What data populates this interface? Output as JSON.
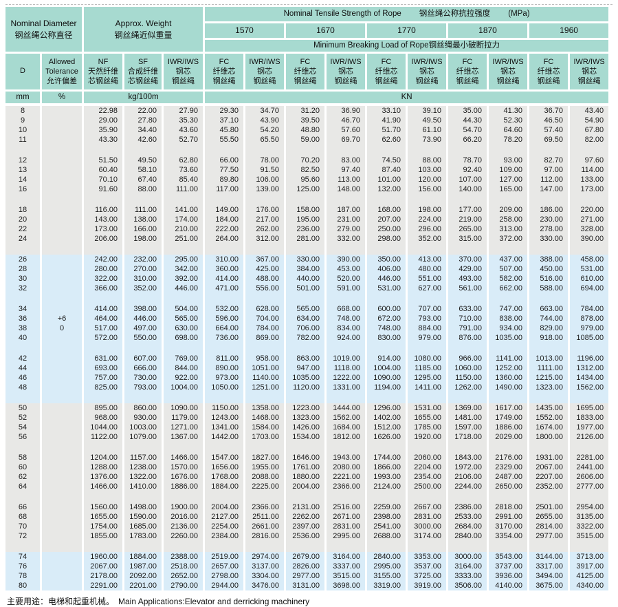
{
  "header": {
    "nominal_diameter_en": "Nominal Diameter",
    "nominal_diameter_zh": "钢丝绳公称直径",
    "approx_weight_en": "Approx. Weight",
    "approx_weight_zh": "钢丝绳近似重量",
    "tensile_title_en": "Nominal Tensile Strength of Rope",
    "tensile_title_zh": "钢丝绳公称抗拉强度",
    "tensile_title_unit": "(MPa)",
    "grades": [
      "1570",
      "1670",
      "1770",
      "1870",
      "1960"
    ],
    "breaking_load_en": "Minimum Breaking Load of Rope",
    "breaking_load_zh": "钢丝绳最小破断拉力",
    "col_d": "D",
    "tolerance_line1": "Allowed",
    "tolerance_line2": "Tolerance",
    "tolerance_zh": "允许偏差",
    "weight_columns": [
      {
        "id": "nf",
        "lines": [
          "NF",
          "天然纤维",
          "芯钢丝绳"
        ]
      },
      {
        "id": "sf",
        "lines": [
          "SF",
          "合成纤维",
          "芯钢丝绳"
        ]
      },
      {
        "id": "iwr",
        "lines": [
          "IWR/IWS",
          "钢芯",
          "钢丝绳"
        ]
      }
    ],
    "load_column_fc": {
      "id": "fc",
      "lines": [
        "FC",
        "纤维芯",
        "钢丝绳"
      ]
    },
    "load_column_iwr": {
      "id": "iwr-iws",
      "lines": [
        "IWR/IWS",
        "钢芯",
        "钢丝绳"
      ]
    },
    "unit_mm": "mm",
    "unit_pct": "%",
    "unit_kg": "kg/100m",
    "unit_kn": "KN"
  },
  "tolerance_display": {
    "upper": "+6",
    "lower": "0"
  },
  "colors": {
    "header_teal": "#a7dad0",
    "band_gray": "#e8e8e6",
    "band_blue": "#d9ecf8"
  },
  "groups": [
    {
      "band": "gray",
      "rows": [
        {
          "d": "8",
          "v": [
            "22.98",
            "22.00",
            "27.90",
            "29.30",
            "34.70",
            "31.20",
            "36.90",
            "33.10",
            "39.10",
            "35.00",
            "41.30",
            "36.70",
            "43.40"
          ]
        },
        {
          "d": "9",
          "v": [
            "29.00",
            "27.80",
            "35.30",
            "37.10",
            "43.90",
            "39.50",
            "46.70",
            "41.90",
            "49.50",
            "44.30",
            "52.30",
            "46.50",
            "54.90"
          ]
        },
        {
          "d": "10",
          "v": [
            "35.90",
            "34.40",
            "43.60",
            "45.80",
            "54.20",
            "48.80",
            "57.60",
            "51.70",
            "61.10",
            "54.70",
            "64.60",
            "57.40",
            "67.80"
          ]
        },
        {
          "d": "11",
          "v": [
            "43.30",
            "42.60",
            "52.70",
            "55.50",
            "65.50",
            "59.00",
            "69.70",
            "62.60",
            "73.90",
            "66.20",
            "78.20",
            "69.50",
            "82.00"
          ]
        }
      ]
    },
    {
      "band": "gray",
      "rows": [
        {
          "d": "12",
          "v": [
            "51.50",
            "49.50",
            "62.80",
            "66.00",
            "78.00",
            "70.20",
            "83.00",
            "74.50",
            "88.00",
            "78.70",
            "93.00",
            "82.70",
            "97.60"
          ]
        },
        {
          "d": "13",
          "v": [
            "60.40",
            "58.10",
            "73.60",
            "77.50",
            "91.50",
            "82.50",
            "97.40",
            "87.40",
            "103.00",
            "92.40",
            "109.00",
            "97.00",
            "114.00"
          ]
        },
        {
          "d": "14",
          "v": [
            "70.10",
            "67.40",
            "85.40",
            "89.80",
            "106.00",
            "95.60",
            "113.00",
            "101.00",
            "120.00",
            "107.00",
            "127.00",
            "112.00",
            "133.00"
          ]
        },
        {
          "d": "16",
          "v": [
            "91.60",
            "88.00",
            "111.00",
            "117.00",
            "139.00",
            "125.00",
            "148.00",
            "132.00",
            "156.00",
            "140.00",
            "165.00",
            "147.00",
            "173.00"
          ]
        }
      ]
    },
    {
      "band": "gray",
      "rows": [
        {
          "d": "18",
          "v": [
            "116.00",
            "111.00",
            "141.00",
            "149.00",
            "176.00",
            "158.00",
            "187.00",
            "168.00",
            "198.00",
            "177.00",
            "209.00",
            "186.00",
            "220.00"
          ]
        },
        {
          "d": "20",
          "v": [
            "143.00",
            "138.00",
            "174.00",
            "184.00",
            "217.00",
            "195.00",
            "231.00",
            "207.00",
            "224.00",
            "219.00",
            "258.00",
            "230.00",
            "271.00"
          ]
        },
        {
          "d": "22",
          "v": [
            "173.00",
            "166.00",
            "210.00",
            "222.00",
            "262.00",
            "236.00",
            "279.00",
            "250.00",
            "296.00",
            "265.00",
            "313.00",
            "278.00",
            "328.00"
          ]
        },
        {
          "d": "24",
          "v": [
            "206.00",
            "198.00",
            "251.00",
            "264.00",
            "312.00",
            "281.00",
            "332.00",
            "298.00",
            "352.00",
            "315.00",
            "372.00",
            "330.00",
            "390.00"
          ]
        }
      ]
    },
    {
      "band": "blue",
      "rows": [
        {
          "d": "26",
          "v": [
            "242.00",
            "232.00",
            "295.00",
            "310.00",
            "367.00",
            "330.00",
            "390.00",
            "350.00",
            "413.00",
            "370.00",
            "437.00",
            "388.00",
            "458.00"
          ]
        },
        {
          "d": "28",
          "v": [
            "280.00",
            "270.00",
            "342.00",
            "360.00",
            "425.00",
            "384.00",
            "453.00",
            "406.00",
            "480.00",
            "429.00",
            "507.00",
            "450.00",
            "531.00"
          ]
        },
        {
          "d": "30",
          "v": [
            "322.00",
            "310.00",
            "392.00",
            "414.00",
            "488.00",
            "440.00",
            "520.00",
            "446.00",
            "551.00",
            "493.00",
            "582.00",
            "516.00",
            "610.00"
          ]
        },
        {
          "d": "32",
          "v": [
            "366.00",
            "352.00",
            "446.00",
            "471.00",
            "556.00",
            "501.00",
            "591.00",
            "531.00",
            "627.00",
            "561.00",
            "662.00",
            "588.00",
            "694.00"
          ]
        }
      ]
    },
    {
      "band": "blue",
      "rows": [
        {
          "d": "34",
          "v": [
            "414.00",
            "398.00",
            "504.00",
            "532.00",
            "628.00",
            "565.00",
            "668.00",
            "600.00",
            "707.00",
            "633.00",
            "747.00",
            "663.00",
            "784.00"
          ]
        },
        {
          "d": "36",
          "tol": "+6",
          "v": [
            "464.00",
            "446.00",
            "565.00",
            "596.00",
            "704.00",
            "634.00",
            "748.00",
            "672.00",
            "793.00",
            "710.00",
            "838.00",
            "744.00",
            "878.00"
          ]
        },
        {
          "d": "38",
          "tol": "0",
          "v": [
            "517.00",
            "497.00",
            "630.00",
            "664.00",
            "784.00",
            "706.00",
            "834.00",
            "748.00",
            "884.00",
            "791.00",
            "934.00",
            "829.00",
            "979.00"
          ]
        },
        {
          "d": "40",
          "v": [
            "572.00",
            "550.00",
            "698.00",
            "736.00",
            "869.00",
            "782.00",
            "924.00",
            "830.00",
            "979.00",
            "876.00",
            "1035.00",
            "918.00",
            "1085.00"
          ]
        }
      ]
    },
    {
      "band": "blue",
      "rows": [
        {
          "d": "42",
          "v": [
            "631.00",
            "607.00",
            "769.00",
            "811.00",
            "958.00",
            "863.00",
            "1019.00",
            "914.00",
            "1080.00",
            "966.00",
            "1141.00",
            "1013.00",
            "1196.00"
          ]
        },
        {
          "d": "44",
          "v": [
            "693.00",
            "666.00",
            "844.00",
            "890.00",
            "1051.00",
            "947.00",
            "1118.00",
            "1004.00",
            "1185.00",
            "1060.00",
            "1252.00",
            "1111.00",
            "1312.00"
          ]
        },
        {
          "d": "46",
          "v": [
            "757.00",
            "730.00",
            "922.00",
            "973.00",
            "1140.00",
            "1035.00",
            "1222.00",
            "1090.00",
            "1295.00",
            "1150.00",
            "1360.00",
            "1215.00",
            "1434.00"
          ]
        },
        {
          "d": "48",
          "v": [
            "825.00",
            "793.00",
            "1004.00",
            "1050.00",
            "1251.00",
            "1120.00",
            "1331.00",
            "1194.00",
            "1411.00",
            "1262.00",
            "1490.00",
            "1323.00",
            "1562.00"
          ]
        }
      ]
    },
    {
      "band": "gray",
      "rows": [
        {
          "d": "50",
          "v": [
            "895.00",
            "860.00",
            "1090.00",
            "1150.00",
            "1358.00",
            "1223.00",
            "1444.00",
            "1296.00",
            "1531.00",
            "1369.00",
            "1617.00",
            "1435.00",
            "1695.00"
          ]
        },
        {
          "d": "52",
          "v": [
            "968.00",
            "930.00",
            "1179.00",
            "1243.00",
            "1468.00",
            "1323.00",
            "1562.00",
            "1402.00",
            "1655.00",
            "1481.00",
            "1749.00",
            "1552.00",
            "1833.00"
          ]
        },
        {
          "d": "54",
          "v": [
            "1044.00",
            "1003.00",
            "1271.00",
            "1341.00",
            "1584.00",
            "1426.00",
            "1684.00",
            "1512.00",
            "1785.00",
            "1597.00",
            "1886.00",
            "1674.00",
            "1977.00"
          ]
        },
        {
          "d": "56",
          "v": [
            "1122.00",
            "1079.00",
            "1367.00",
            "1442.00",
            "1703.00",
            "1534.00",
            "1812.00",
            "1626.00",
            "1920.00",
            "1718.00",
            "2029.00",
            "1800.00",
            "2126.00"
          ]
        }
      ]
    },
    {
      "band": "gray",
      "rows": [
        {
          "d": "58",
          "v": [
            "1204.00",
            "1157.00",
            "1466.00",
            "1547.00",
            "1827.00",
            "1646.00",
            "1943.00",
            "1744.00",
            "2060.00",
            "1843.00",
            "2176.00",
            "1931.00",
            "2281.00"
          ]
        },
        {
          "d": "60",
          "v": [
            "1288.00",
            "1238.00",
            "1570.00",
            "1656.00",
            "1955.00",
            "1761.00",
            "2080.00",
            "1866.00",
            "2204.00",
            "1972.00",
            "2329.00",
            "2067.00",
            "2441.00"
          ]
        },
        {
          "d": "62",
          "v": [
            "1376.00",
            "1322.00",
            "1676.00",
            "1768.00",
            "2088.00",
            "1880.00",
            "2221.00",
            "1993.00",
            "2354.00",
            "2106.00",
            "2487.00",
            "2207.00",
            "2606.00"
          ]
        },
        {
          "d": "64",
          "v": [
            "1466.00",
            "1410.00",
            "1886.00",
            "1884.00",
            "2225.00",
            "2004.00",
            "2366.00",
            "2124.00",
            "2500.00",
            "2244.00",
            "2650.00",
            "2352.00",
            "2777.00"
          ]
        }
      ]
    },
    {
      "band": "gray",
      "rows": [
        {
          "d": "66",
          "v": [
            "1560.00",
            "1498.00",
            "1900.00",
            "2004.00",
            "2366.00",
            "2131.00",
            "2516.00",
            "2259.00",
            "2667.00",
            "2386.00",
            "2818.00",
            "2501.00",
            "2954.00"
          ]
        },
        {
          "d": "68",
          "v": [
            "1655.00",
            "1590.00",
            "2016.00",
            "2127.00",
            "2511.00",
            "2262.00",
            "2671.00",
            "2398.00",
            "2831.00",
            "2533.00",
            "2991.00",
            "2655.00",
            "3135.00"
          ]
        },
        {
          "d": "70",
          "v": [
            "1754.00",
            "1685.00",
            "2136.00",
            "2254.00",
            "2661.00",
            "2397.00",
            "2831.00",
            "2541.00",
            "3000.00",
            "2684.00",
            "3170.00",
            "2814.00",
            "3322.00"
          ]
        },
        {
          "d": "72",
          "v": [
            "1855.00",
            "1783.00",
            "2260.00",
            "2384.00",
            "2816.00",
            "2536.00",
            "2995.00",
            "2688.00",
            "3174.00",
            "2840.00",
            "3354.00",
            "2977.00",
            "3515.00"
          ]
        }
      ]
    },
    {
      "band": "blue",
      "rows": [
        {
          "d": "74",
          "v": [
            "1960.00",
            "1884.00",
            "2388.00",
            "2519.00",
            "2974.00",
            "2679.00",
            "3164.00",
            "2840.00",
            "3353.00",
            "3000.00",
            "3543.00",
            "3144.00",
            "3713.00"
          ]
        },
        {
          "d": "76",
          "v": [
            "2067.00",
            "1987.00",
            "2518.00",
            "2657.00",
            "3137.00",
            "2826.00",
            "3337.00",
            "2995.00",
            "3537.00",
            "3164.00",
            "3737.00",
            "3317.00",
            "3917.00"
          ]
        },
        {
          "d": "78",
          "v": [
            "2178.00",
            "2092.00",
            "2652.00",
            "2798.00",
            "3304.00",
            "2977.00",
            "3515.00",
            "3155.00",
            "3725.00",
            "3333.00",
            "3936.00",
            "3494.00",
            "4125.00"
          ]
        },
        {
          "d": "80",
          "v": [
            "2291.00",
            "2201.00",
            "2790.00",
            "2944.00",
            "3476.00",
            "3131.00",
            "3698.00",
            "3319.00",
            "3919.00",
            "3506.00",
            "4140.00",
            "3675.00",
            "4340.00"
          ]
        }
      ]
    }
  ],
  "footer": {
    "zh": "主要用途：电梯和起重机械。",
    "en": "Main Applications:Elevator and derricking machinery"
  }
}
